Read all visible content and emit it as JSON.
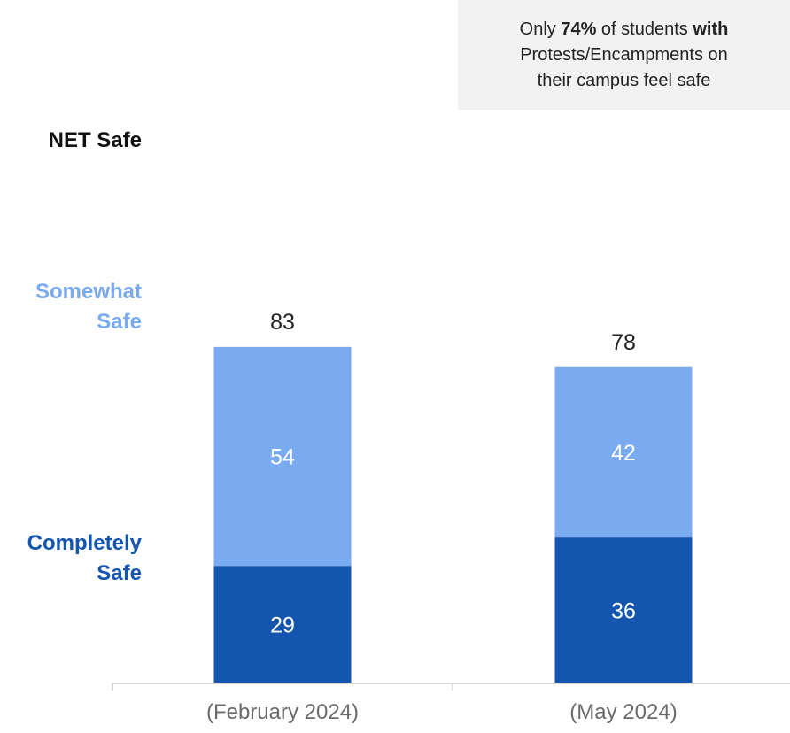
{
  "callout": {
    "line1_pre": "Only ",
    "line1_pct": "74%",
    "line1_mid": " of students ",
    "line1_with": "with",
    "line2": "Protests/Encampments on",
    "line3": "their campus feel safe"
  },
  "row_labels": {
    "net": "NET Safe",
    "somewhat_1": "Somewhat",
    "somewhat_2": "Safe",
    "completely_1": "Completely",
    "completely_2": "Safe"
  },
  "colors": {
    "completely_safe": "#1455b0",
    "somewhat_safe": "#7aaaf0",
    "callout_bg": "#f2f2f2",
    "axis": "#cccccc"
  },
  "chart_data": {
    "type": "bar",
    "stacked": true,
    "categories": [
      "(February 2024)",
      "(May 2024)"
    ],
    "series": [
      {
        "name": "Completely Safe",
        "values": [
          29,
          36
        ]
      },
      {
        "name": "Somewhat Safe",
        "values": [
          54,
          42
        ]
      }
    ],
    "totals": [
      83,
      78
    ],
    "ylim": [
      0,
      100
    ],
    "grid": false
  }
}
